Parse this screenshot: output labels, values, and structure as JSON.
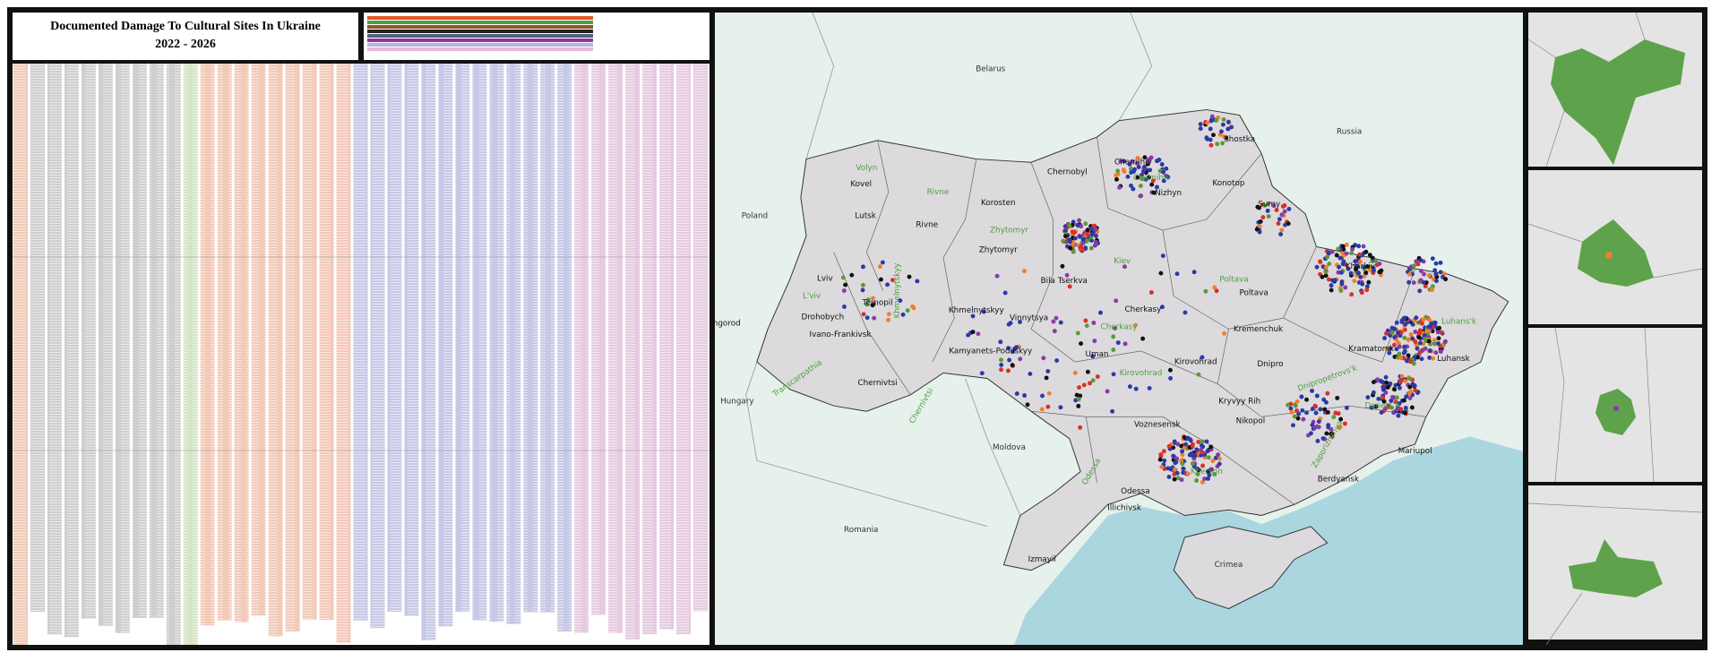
{
  "header": {
    "title": "Documented Damage To Cultural Sites In Ukraine",
    "subtitle": "2022 - 2026"
  },
  "map": {
    "countries": [
      "Belarus",
      "Russia",
      "Poland",
      "Hungary",
      "Moldova",
      "Romania",
      "Crimea"
    ],
    "cities": [
      "Kovel",
      "Lutsk",
      "Rivne",
      "Korosten",
      "Chernobyl",
      "Chernihiv",
      "Nizhyn",
      "Shostka",
      "Konotop",
      "Sumy",
      "Zhytomyr",
      "Lviv",
      "Ternopil",
      "Drohobych",
      "Ivano-Frankivsk",
      "Khmelnytskyy",
      "Vinnytsya",
      "Bila Tserkva",
      "Kharkiv",
      "Poltava",
      "Cherkasy",
      "Kremenchuk",
      "Kamyanets-Podilskyy",
      "Uman",
      "Kirovohrad",
      "Chernivtsi",
      "Dnipro",
      "Kramatorsk",
      "Luhansk",
      "Kryvyy Rih",
      "Nikopol",
      "Voznesensk",
      "Mariupol",
      "Odessa",
      "Berdyansk",
      "Illichivsk",
      "Izmayil",
      "Uzhgorod"
    ],
    "regions": [
      "Volyn",
      "Rivne",
      "Zhytomyr",
      "Chernihiv",
      "Kiev",
      "L'viv",
      "Khmelnytskyy",
      "Cherkasy",
      "Poltava",
      "Kirovohrad",
      "Transcarpathia",
      "Chernivtsi",
      "Dnipropetrovs'k",
      "Luhans'k",
      "Odessa",
      "Kherson",
      "Donets'k",
      "Zaporizhzhya"
    ]
  }
}
